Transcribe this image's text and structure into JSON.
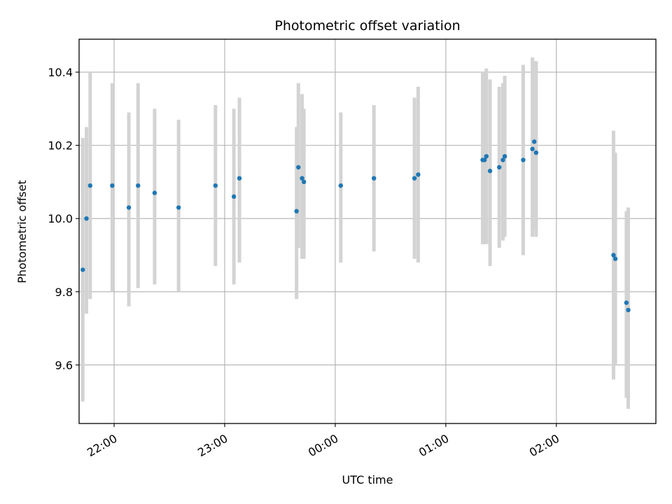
{
  "chart_data": {
    "type": "scatter",
    "title": "Photometric offset variation",
    "xlabel": "UTC time",
    "ylabel": "Photometric offset",
    "x_axis": "time",
    "x_ticks": [
      "22:00",
      "23:00",
      "00:00",
      "01:00",
      "02:00"
    ],
    "y_ticks": [
      "9.6",
      "9.8",
      "10.0",
      "10.2",
      "10.4"
    ],
    "ylim": [
      9.44,
      10.49
    ],
    "xlim": [
      "21:41",
      "02:54"
    ],
    "grid": true,
    "point_color": "#1f77b4",
    "errorbar_color": "#d3d3d3",
    "points": [
      {
        "x": "21:43",
        "y": 9.86,
        "low": 9.5,
        "high": 10.22
      },
      {
        "x": "21:45",
        "y": 10.0,
        "low": 9.74,
        "high": 10.25
      },
      {
        "x": "21:47",
        "y": 10.09,
        "low": 9.78,
        "high": 10.4
      },
      {
        "x": "21:59",
        "y": 10.09,
        "low": 9.8,
        "high": 10.37
      },
      {
        "x": "22:08",
        "y": 10.03,
        "low": 9.76,
        "high": 10.29
      },
      {
        "x": "22:13",
        "y": 10.09,
        "low": 9.81,
        "high": 10.37
      },
      {
        "x": "22:22",
        "y": 10.07,
        "low": 9.82,
        "high": 10.3
      },
      {
        "x": "22:35",
        "y": 10.03,
        "low": 9.8,
        "high": 10.27
      },
      {
        "x": "22:55",
        "y": 10.09,
        "low": 9.87,
        "high": 10.31
      },
      {
        "x": "23:05",
        "y": 10.06,
        "low": 9.82,
        "high": 10.3
      },
      {
        "x": "23:08",
        "y": 10.11,
        "low": 9.88,
        "high": 10.33
      },
      {
        "x": "23:39",
        "y": 10.02,
        "low": 9.78,
        "high": 10.25
      },
      {
        "x": "23:40",
        "y": 10.14,
        "low": 9.92,
        "high": 10.37
      },
      {
        "x": "23:42",
        "y": 10.11,
        "low": 9.89,
        "high": 10.34
      },
      {
        "x": "23:43",
        "y": 10.1,
        "low": 9.89,
        "high": 10.3
      },
      {
        "x": "00:03",
        "y": 10.09,
        "low": 9.88,
        "high": 10.29
      },
      {
        "x": "00:21",
        "y": 10.11,
        "low": 9.91,
        "high": 10.31
      },
      {
        "x": "00:43",
        "y": 10.11,
        "low": 9.89,
        "high": 10.33
      },
      {
        "x": "00:45",
        "y": 10.12,
        "low": 9.88,
        "high": 10.36
      },
      {
        "x": "01:20",
        "y": 10.16,
        "low": 9.93,
        "high": 10.4
      },
      {
        "x": "01:21",
        "y": 10.16,
        "low": 9.93,
        "high": 10.4
      },
      {
        "x": "01:22",
        "y": 10.17,
        "low": 9.93,
        "high": 10.41
      },
      {
        "x": "01:24",
        "y": 10.13,
        "low": 9.87,
        "high": 10.38
      },
      {
        "x": "01:29",
        "y": 10.14,
        "low": 9.92,
        "high": 10.36
      },
      {
        "x": "01:31",
        "y": 10.16,
        "low": 9.94,
        "high": 10.37
      },
      {
        "x": "01:32",
        "y": 10.17,
        "low": 9.95,
        "high": 10.39
      },
      {
        "x": "01:42",
        "y": 10.16,
        "low": 9.9,
        "high": 10.42
      },
      {
        "x": "01:47",
        "y": 10.19,
        "low": 9.95,
        "high": 10.44
      },
      {
        "x": "01:48",
        "y": 10.21,
        "low": 9.97,
        "high": 10.43
      },
      {
        "x": "01:49",
        "y": 10.18,
        "low": 9.95,
        "high": 10.43
      },
      {
        "x": "02:31",
        "y": 9.9,
        "low": 9.56,
        "high": 10.24
      },
      {
        "x": "02:32",
        "y": 9.89,
        "low": 9.6,
        "high": 10.18
      },
      {
        "x": "02:38",
        "y": 9.77,
        "low": 9.51,
        "high": 10.02
      },
      {
        "x": "02:39",
        "y": 9.75,
        "low": 9.48,
        "high": 10.03
      }
    ]
  }
}
